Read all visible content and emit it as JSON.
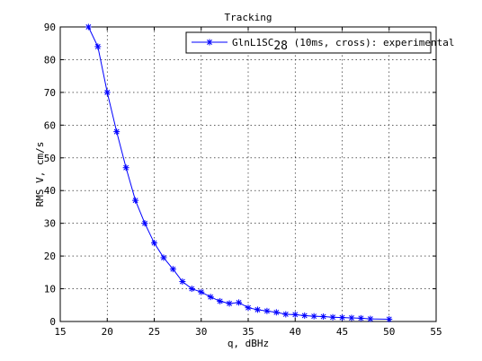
{
  "chart_data": {
    "type": "line",
    "title": "Tracking",
    "xlabel": "q, dBHz",
    "ylabel": "RMS V, cm/s",
    "xlim": [
      15,
      55
    ],
    "ylim": [
      0,
      90
    ],
    "xticks": [
      15,
      20,
      25,
      30,
      35,
      40,
      45,
      50,
      55
    ],
    "yticks": [
      0,
      10,
      20,
      30,
      40,
      50,
      60,
      70,
      80,
      90
    ],
    "grid": true,
    "legend_position": "top-right",
    "series": [
      {
        "name_main": "GlnL1SC",
        "name_sub": "28",
        "name_rest": " (10ms, cross): experimental",
        "color": "#0000ff",
        "marker": "asterisk",
        "x": [
          18,
          19,
          20,
          21,
          22,
          23,
          24,
          25,
          26,
          27,
          28,
          29,
          30,
          31,
          32,
          33,
          34,
          35,
          36,
          37,
          38,
          39,
          40,
          41,
          42,
          43,
          44,
          45,
          46,
          47,
          48,
          50
        ],
        "y": [
          90,
          84,
          70,
          58,
          47,
          37,
          30,
          24,
          19.5,
          16,
          12.2,
          10,
          9,
          7.5,
          6.2,
          5.5,
          5.8,
          4.2,
          3.6,
          3.2,
          2.8,
          2.2,
          2.1,
          1.8,
          1.6,
          1.5,
          1.3,
          1.2,
          1.1,
          1.0,
          0.8,
          0.7
        ]
      }
    ]
  }
}
